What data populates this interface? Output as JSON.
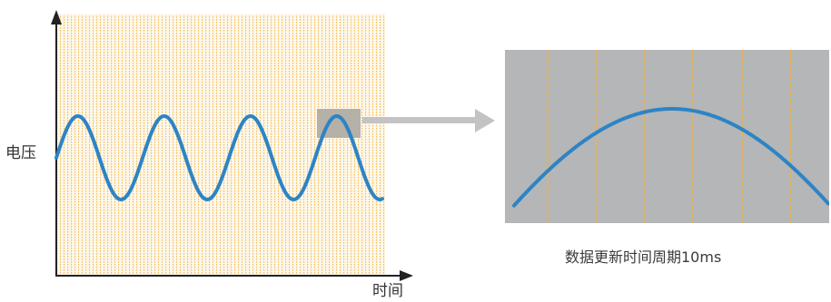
{
  "labels": {
    "y_axis": "电压",
    "x_axis": "时间"
  },
  "caption": "数据更新时间周期10ms",
  "colors": {
    "wave": "#2d84c4",
    "sample_lines": "#f4b23c",
    "sample_area": "#fdf7ea",
    "zoom_panel": "#b4b6b7",
    "highlight_box": "#b5b0a8",
    "arrow": "#c3c3c3",
    "axis": "#222222"
  },
  "icons": {
    "axis_arrows": "arrowhead-icon",
    "zoom_arrow": "right-arrow-icon"
  }
}
